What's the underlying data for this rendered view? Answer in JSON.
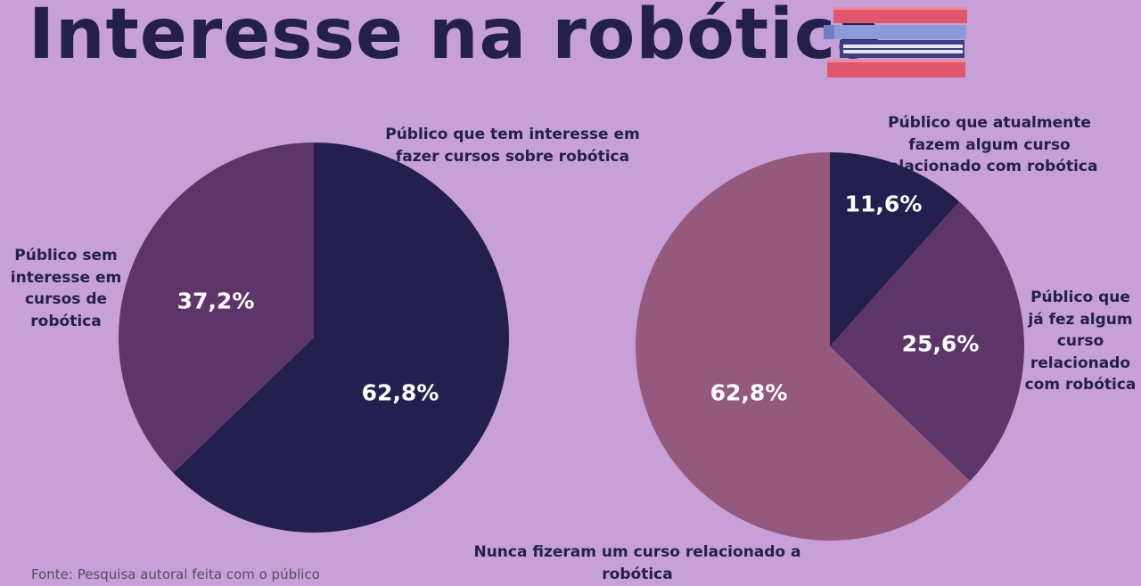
{
  "title": "Interesse na robótica",
  "source": "Fonte: Pesquisa autoral feita com o público",
  "colors": {
    "background": "#c7a0d8",
    "navy": "#23204f",
    "purple": "#5d3669",
    "mauve": "#95597e",
    "text": "#23204f"
  },
  "chart_data": [
    {
      "type": "pie",
      "slices": [
        {
          "label": "Público que tem interesse em fazer cursos sobre robótica",
          "value": 62.8,
          "value_label": "62,8%",
          "color": "#23204f"
        },
        {
          "label": "Público sem interesse em cursos de robótica",
          "value": 37.2,
          "value_label": "37,2%",
          "color": "#5d3669"
        }
      ]
    },
    {
      "type": "pie",
      "slices": [
        {
          "label": "Público que atualmente fazem algum curso relacionado com robótica",
          "value": 11.6,
          "value_label": "11,6%",
          "color": "#23204f"
        },
        {
          "label": "Público que já fez algum curso relacionado com robótica",
          "value": 25.6,
          "value_label": "25,6%",
          "color": "#5d3669"
        },
        {
          "label": "Nunca fizeram um curso relacionado a robótica",
          "value": 62.8,
          "value_label": "62,8%",
          "color": "#95597e"
        }
      ]
    }
  ]
}
